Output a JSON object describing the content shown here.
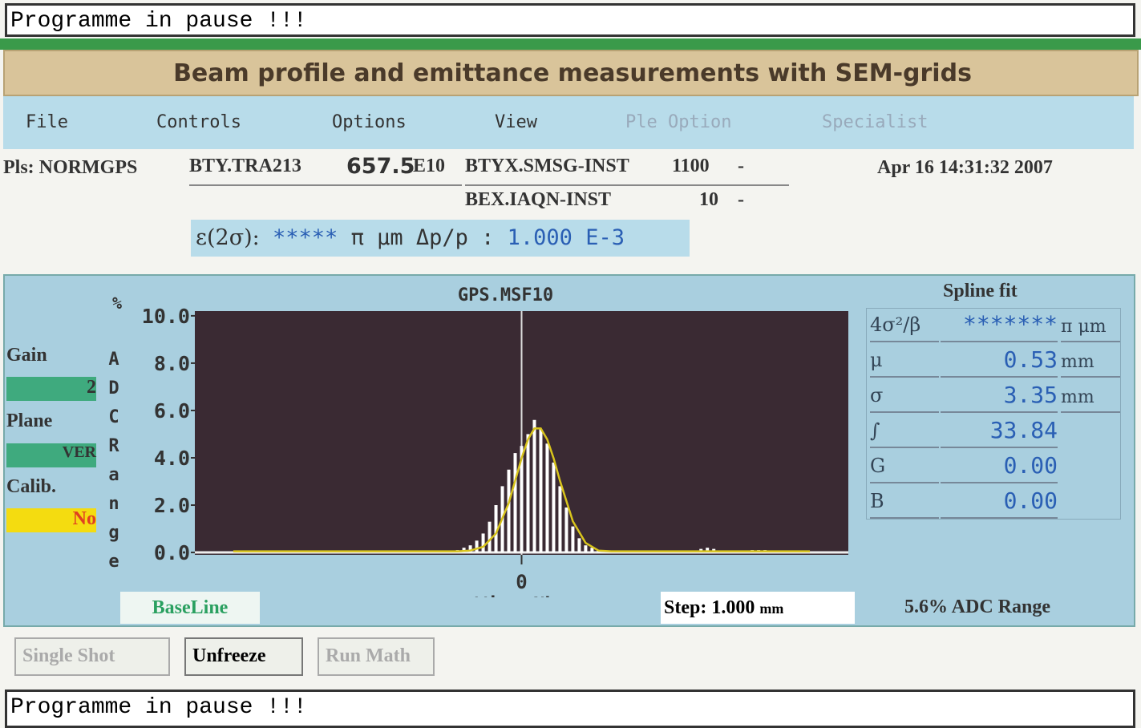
{
  "status_top": "Programme in pause !!!",
  "window_title": "Beam profile and emittance measurements with SEM-grids",
  "menu": [
    "File",
    "Controls",
    "Options",
    "View",
    "Ple Option",
    "Specialist"
  ],
  "info": {
    "pls": "Pls: NORMGPS",
    "device1": "BTY.TRA213",
    "intensity": "657.5",
    "intensity_unit": "E10",
    "device2": "BTYX.SMSG-INST",
    "device2_value": "1100",
    "device2_unit": "-",
    "device3": "BEX.IAQN-INST",
    "device3_value": "10",
    "device3_unit": "-",
    "date": "Apr 16 14:31:32 2007"
  },
  "emittance": {
    "label": "ε(2σ):",
    "value": "*****",
    "unit": "π μm Δp/p :",
    "dpp": "1.000",
    "dpp_unit": "E-3"
  },
  "left_panel": {
    "gain_label": "Gain",
    "gain": "2",
    "plane_label": "Plane",
    "plane": "VER",
    "calib_label": "Calib.",
    "calib": "No"
  },
  "chart_data": {
    "type": "bar",
    "title": "GPS.MSF10",
    "y_unit": "%",
    "y_axis_label": "ADC Range",
    "x_axis_label": "Wire Nbs",
    "xlim": [
      -51,
      51
    ],
    "xticks": [
      0
    ],
    "ylim": [
      -0.1,
      10.2
    ],
    "yticks": [
      {
        "value": 0,
        "label": "0.0"
      },
      {
        "value": 2,
        "label": "2.0"
      },
      {
        "value": 4,
        "label": "4.0"
      },
      {
        "value": 6,
        "label": "6.0"
      },
      {
        "value": 8,
        "label": "8.0"
      },
      {
        "value": 10,
        "label": "10.0"
      }
    ],
    "bars": {
      "color": "#ffffff",
      "x": [
        -10,
        -9,
        -8,
        -7,
        -6,
        -5,
        -4,
        -3,
        -2,
        -1,
        0,
        1,
        2,
        3,
        4,
        5,
        6,
        7,
        8,
        9,
        10,
        11,
        12,
        28,
        29,
        30,
        36,
        37,
        38
      ],
      "values": [
        0.1,
        0.2,
        0.3,
        0.5,
        0.8,
        1.3,
        2.0,
        2.8,
        3.5,
        4.2,
        4.5,
        5.0,
        5.6,
        5.2,
        4.6,
        3.8,
        2.8,
        1.9,
        1.1,
        0.6,
        0.3,
        0.2,
        0.1,
        0.15,
        0.2,
        0.15,
        0.1,
        0.1,
        0.1
      ]
    },
    "fit": {
      "color": "#d8c41c",
      "x": [
        -45,
        -10,
        -8,
        -6,
        -4,
        -2,
        0,
        1,
        2,
        3,
        4,
        5,
        6,
        8,
        10,
        12,
        14,
        45
      ],
      "values": [
        0.05,
        0.05,
        0.08,
        0.24,
        0.8,
        2.09,
        3.98,
        4.78,
        5.24,
        5.24,
        4.78,
        3.98,
        3.02,
        1.32,
        0.4,
        0.08,
        0.05,
        0.05
      ]
    }
  },
  "spline": {
    "title": "Spline fit",
    "rows": [
      {
        "label": "4σ²/β",
        "value": "*******",
        "unit": "π μm"
      },
      {
        "label": "μ",
        "value": "0.53",
        "unit": "mm"
      },
      {
        "label": "σ",
        "value": "3.35",
        "unit": "mm"
      },
      {
        "label": "∫",
        "value": "33.84"
      },
      {
        "label": "G",
        "value": "0.00"
      },
      {
        "label": "B",
        "value": "0.00"
      }
    ]
  },
  "footer": {
    "baseline": "BaseLine",
    "step_label": "Step:",
    "step": "1.000",
    "step_unit": "mm",
    "range": "5.6% ADC Range"
  },
  "buttons": [
    "Single Shot",
    "Unfreeze",
    "Run Math"
  ],
  "status_bottom": "Programme in pause !!!"
}
